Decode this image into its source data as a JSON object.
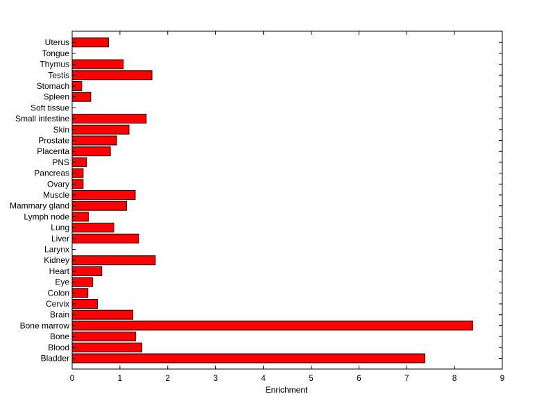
{
  "chart_data": {
    "type": "bar",
    "orientation": "horizontal",
    "title": "",
    "xlabel": "Enrichment",
    "ylabel": "",
    "xlim": [
      0,
      9
    ],
    "xticks": [
      "0",
      "1",
      "2",
      "3",
      "4",
      "5",
      "6",
      "7",
      "8",
      "9"
    ],
    "grid": false,
    "bar_color": "#ff0000",
    "categories": [
      "Bladder",
      "Blood",
      "Bone",
      "Bone marrow",
      "Brain",
      "Cervix",
      "Colon",
      "Eye",
      "Heart",
      "Kidney",
      "Larynx",
      "Liver",
      "Lung",
      "Lymph node",
      "Mammary gland",
      "Muscle",
      "Ovary",
      "Pancreas",
      "PNS",
      "Placenta",
      "Prostate",
      "Skin",
      "Small intestine",
      "Soft tissue",
      "Spleen",
      "Stomach",
      "Testis",
      "Thymus",
      "Tongue",
      "Uterus"
    ],
    "values": [
      7.38,
      1.46,
      1.33,
      8.38,
      1.27,
      0.53,
      0.33,
      0.43,
      0.62,
      1.74,
      0.0,
      1.39,
      0.87,
      0.34,
      1.14,
      1.32,
      0.23,
      0.23,
      0.3,
      0.8,
      0.93,
      1.19,
      1.55,
      0.0,
      0.39,
      0.2,
      1.67,
      1.07,
      0.0,
      0.76
    ]
  }
}
